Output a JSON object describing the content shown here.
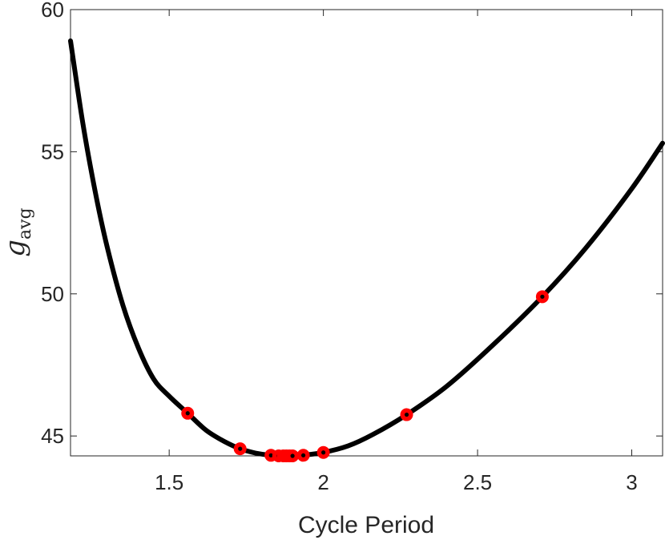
{
  "chart_data": {
    "type": "line",
    "title": "",
    "xlabel": "Cycle Period",
    "ylabel": "g",
    "ylabel_subscript": "avg",
    "xlim": [
      1.18,
      3.1
    ],
    "ylim": [
      44.3,
      60
    ],
    "x_ticks": [
      1.5,
      2,
      2.5,
      3
    ],
    "x_tick_labels": [
      "1.5",
      "2",
      "2.5",
      "3"
    ],
    "y_ticks": [
      45,
      50,
      55,
      60
    ],
    "y_tick_labels": [
      "45",
      "50",
      "55",
      "60"
    ],
    "grid": false,
    "legend": "none",
    "line_color": "#000000",
    "marker_color": "#ff0000",
    "series": [
      {
        "style": "line",
        "x": [
          1.18,
          1.22,
          1.26,
          1.3,
          1.35,
          1.4,
          1.45,
          1.5,
          1.56,
          1.62,
          1.68,
          1.73,
          1.78,
          1.83,
          1.88,
          1.93,
          2.0,
          2.08,
          2.16,
          2.27,
          2.4,
          2.55,
          2.71,
          2.85,
          3.0,
          3.1
        ],
        "y": [
          58.9,
          56.0,
          53.6,
          51.6,
          49.6,
          48.1,
          47.0,
          46.4,
          45.8,
          45.2,
          44.8,
          44.55,
          44.4,
          44.32,
          44.3,
          44.32,
          44.42,
          44.65,
          45.05,
          45.75,
          46.75,
          48.2,
          49.9,
          51.6,
          53.7,
          55.3
        ]
      },
      {
        "style": "markers",
        "x": [
          1.56,
          1.73,
          1.83,
          1.855,
          1.87,
          1.88,
          1.89,
          1.9,
          1.935,
          2.0,
          2.27,
          2.71
        ],
        "y": [
          45.8,
          44.55,
          44.32,
          44.3,
          44.3,
          44.3,
          44.3,
          44.3,
          44.32,
          44.42,
          45.75,
          49.9
        ]
      }
    ]
  }
}
